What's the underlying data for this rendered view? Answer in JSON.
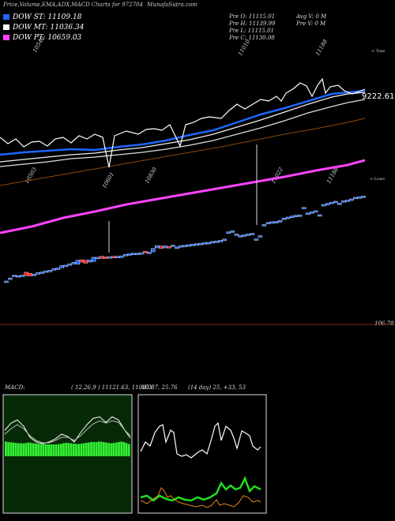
{
  "header": {
    "title": "Price,Volume,EMA,ADX,MACD Charts for 972704",
    "site": "MunafaSutra.com",
    "prev_open": "Pre   O: 11115.01",
    "prev_high": "Pre   H: 11139.99",
    "prev_low": "Pre   L: 11115.01",
    "prev_close": "Pre   C: 11130.08",
    "avg_vol": "Avg V: 0   M",
    "prev_vol": "Pre   V: 0   M",
    "top_label": "< Tops",
    "lows_label": "< Lows"
  },
  "legend": [
    {
      "label": "DOW ST: 11109.18",
      "color": "#1e66ff"
    },
    {
      "label": "DOW MT: 11036.34",
      "color": "#ffffff"
    },
    {
      "label": "DOW PT: 10659.03",
      "color": "#ff44ff"
    }
  ],
  "labels": {
    "price_right": "9222.61",
    "volume_right": "106.78",
    "macd_title": "MACD:",
    "macd_params": "( 12,26,9 ) 11121.63,  11095.87,  25.76",
    "adx_title": "ADX",
    "adx_params": "(14 day) 25,  +33,  53"
  },
  "chart_data": [
    {
      "type": "candlestick",
      "top_labels": [
        "10540",
        "11010",
        "11188"
      ],
      "low_labels": [
        "10503",
        "10601",
        "10830",
        "11022",
        "11188"
      ],
      "candles": [
        {
          "o": 9650,
          "c": 9655,
          "color": "blue"
        },
        {
          "o": 9700,
          "c": 9710,
          "color": "blue"
        },
        {
          "o": 9740,
          "c": 9760,
          "color": "blue"
        },
        {
          "o": 9745,
          "c": 9752,
          "color": "blue"
        },
        {
          "o": 9755,
          "c": 9760,
          "color": "blue"
        },
        {
          "o": 9810,
          "c": 9750,
          "color": "red"
        },
        {
          "o": 9790,
          "c": 9745,
          "color": "red"
        },
        {
          "o": 9770,
          "c": 9778,
          "color": "blue"
        },
        {
          "o": 9800,
          "c": 9805,
          "color": "blue"
        },
        {
          "o": 9810,
          "c": 9815,
          "color": "blue"
        },
        {
          "o": 9830,
          "c": 9835,
          "color": "blue"
        },
        {
          "o": 9840,
          "c": 9845,
          "color": "blue"
        },
        {
          "o": 9870,
          "c": 9875,
          "color": "blue"
        },
        {
          "o": 9880,
          "c": 9885,
          "color": "blue"
        },
        {
          "o": 9890,
          "c": 9930,
          "color": "blue"
        },
        {
          "o": 9925,
          "c": 9935,
          "color": "blue"
        },
        {
          "o": 9950,
          "c": 9960,
          "color": "blue"
        },
        {
          "o": 9980,
          "c": 9985,
          "color": "blue"
        },
        {
          "o": 9950,
          "c": 10020,
          "color": "blue"
        },
        {
          "o": 10030,
          "c": 9990,
          "color": "red"
        },
        {
          "o": 10020,
          "c": 9970,
          "color": "red"
        },
        {
          "o": 9990,
          "c": 10025,
          "color": "blue"
        },
        {
          "o": 10000,
          "c": 10075,
          "color": "blue"
        },
        {
          "o": 10070,
          "c": 10075,
          "color": "blue"
        },
        {
          "o": 10090,
          "c": 10055,
          "color": "red"
        },
        {
          "o": 10080,
          "c": 10070,
          "color": "red"
        },
        {
          "o": 10075,
          "c": 10085,
          "color": "blue"
        },
        {
          "o": 10090,
          "c": 10085,
          "color": "red"
        },
        {
          "o": 10085,
          "c": 10090,
          "color": "blue"
        },
        {
          "o": 10070,
          "c": 10100,
          "color": "blue"
        },
        {
          "o": 10120,
          "c": 10125,
          "color": "blue"
        },
        {
          "o": 10130,
          "c": 10135,
          "color": "blue"
        },
        {
          "o": 10140,
          "c": 10145,
          "color": "blue"
        },
        {
          "o": 10140,
          "c": 10145,
          "color": "blue"
        },
        {
          "o": 10150,
          "c": 10155,
          "color": "blue"
        },
        {
          "o": 10180,
          "c": 10160,
          "color": "red"
        },
        {
          "o": 10160,
          "c": 10165,
          "color": "blue"
        },
        {
          "o": 10170,
          "c": 10230,
          "color": "blue"
        },
        {
          "o": 10240,
          "c": 10280,
          "color": "blue"
        },
        {
          "o": 10270,
          "c": 10230,
          "color": "red"
        },
        {
          "o": 10240,
          "c": 10275,
          "color": "blue"
        },
        {
          "o": 10265,
          "c": 10260,
          "color": "red"
        },
        {
          "o": 10285,
          "c": 10290,
          "color": "blue"
        },
        {
          "o": 10250,
          "c": 10255,
          "color": "blue"
        },
        {
          "o": 10275,
          "c": 10280,
          "color": "blue"
        },
        {
          "o": 10280,
          "c": 10285,
          "color": "blue"
        },
        {
          "o": 10290,
          "c": 10295,
          "color": "blue"
        },
        {
          "o": 10300,
          "c": 10305,
          "color": "blue"
        },
        {
          "o": 10310,
          "c": 10312,
          "color": "blue"
        },
        {
          "o": 10320,
          "c": 10322,
          "color": "blue"
        },
        {
          "o": 10330,
          "c": 10332,
          "color": "blue"
        },
        {
          "o": 10335,
          "c": 10337,
          "color": "blue"
        },
        {
          "o": 10350,
          "c": 10352,
          "color": "blue"
        },
        {
          "o": 10360,
          "c": 10362,
          "color": "blue"
        },
        {
          "o": 10370,
          "c": 10372,
          "color": "blue"
        },
        {
          "o": 10380,
          "c": 10395,
          "color": "blue"
        },
        {
          "o": 10520,
          "c": 10522,
          "color": "blue"
        },
        {
          "o": 10530,
          "c": 10540,
          "color": "blue"
        },
        {
          "o": 10480,
          "c": 10488,
          "color": "blue"
        },
        {
          "o": 10450,
          "c": 10458,
          "color": "blue"
        },
        {
          "o": 10465,
          "c": 10470,
          "color": "blue"
        },
        {
          "o": 10480,
          "c": 10486,
          "color": "blue"
        },
        {
          "o": 10490,
          "c": 10498,
          "color": "blue"
        },
        {
          "o": 10380,
          "c": 10400,
          "color": "blue"
        },
        {
          "o": 10450,
          "c": 10455,
          "color": "blue"
        },
        {
          "o": 10650,
          "c": 10652,
          "color": "blue"
        },
        {
          "o": 10680,
          "c": 10690,
          "color": "blue"
        },
        {
          "o": 10690,
          "c": 10700,
          "color": "blue"
        },
        {
          "o": 10700,
          "c": 10705,
          "color": "blue"
        },
        {
          "o": 10720,
          "c": 10722,
          "color": "blue"
        },
        {
          "o": 10760,
          "c": 10765,
          "color": "blue"
        },
        {
          "o": 10780,
          "c": 10782,
          "color": "blue"
        },
        {
          "o": 10795,
          "c": 10800,
          "color": "blue"
        },
        {
          "o": 10810,
          "c": 10815,
          "color": "blue"
        },
        {
          "o": 10815,
          "c": 10820,
          "color": "blue"
        },
        {
          "o": 10950,
          "c": 10955,
          "color": "blue"
        },
        {
          "o": 10850,
          "c": 10855,
          "color": "blue"
        },
        {
          "o": 10870,
          "c": 10875,
          "color": "blue"
        },
        {
          "o": 10890,
          "c": 10895,
          "color": "blue"
        },
        {
          "o": 10820,
          "c": 10825,
          "color": "blue"
        },
        {
          "o": 11000,
          "c": 11005,
          "color": "blue"
        },
        {
          "o": 11020,
          "c": 11025,
          "color": "blue"
        },
        {
          "o": 11040,
          "c": 11045,
          "color": "blue"
        },
        {
          "o": 11060,
          "c": 11062,
          "color": "blue"
        },
        {
          "o": 11020,
          "c": 11030,
          "color": "blue"
        },
        {
          "o": 11070,
          "c": 11072,
          "color": "blue"
        },
        {
          "o": 11080,
          "c": 11082,
          "color": "blue"
        },
        {
          "o": 11100,
          "c": 11102,
          "color": "blue"
        },
        {
          "o": 11130,
          "c": 11132,
          "color": "blue"
        },
        {
          "o": 11140,
          "c": 11142,
          "color": "blue"
        },
        {
          "o": 11150,
          "c": 11152,
          "color": "blue"
        }
      ],
      "ema_short_end": 11109.18,
      "ema_mid_end": 11036.34,
      "ema_long_end": 10659.03
    },
    {
      "type": "area",
      "name": "MACD",
      "values": [
        0.62,
        0.6,
        0.59,
        0.58,
        0.56,
        0.55,
        0.55,
        0.54,
        0.56,
        0.58,
        0.57,
        0.55,
        0.54,
        0.53,
        0.52,
        0.52,
        0.51,
        0.5,
        0.5,
        0.5,
        0.5,
        0.51,
        0.53,
        0.55,
        0.57,
        0.56,
        0.55,
        0.53,
        0.52,
        0.52,
        0.53,
        0.55,
        0.57,
        0.58,
        0.6,
        0.6,
        0.6,
        0.62,
        0.61,
        0.6,
        0.58,
        0.56,
        0.55,
        0.56,
        0.58,
        0.6,
        0.62,
        0.6,
        0.56,
        0.52
      ]
    },
    {
      "type": "line",
      "name": "ADX",
      "series": [
        "adx",
        "plus_di",
        "minus_di"
      ]
    }
  ]
}
